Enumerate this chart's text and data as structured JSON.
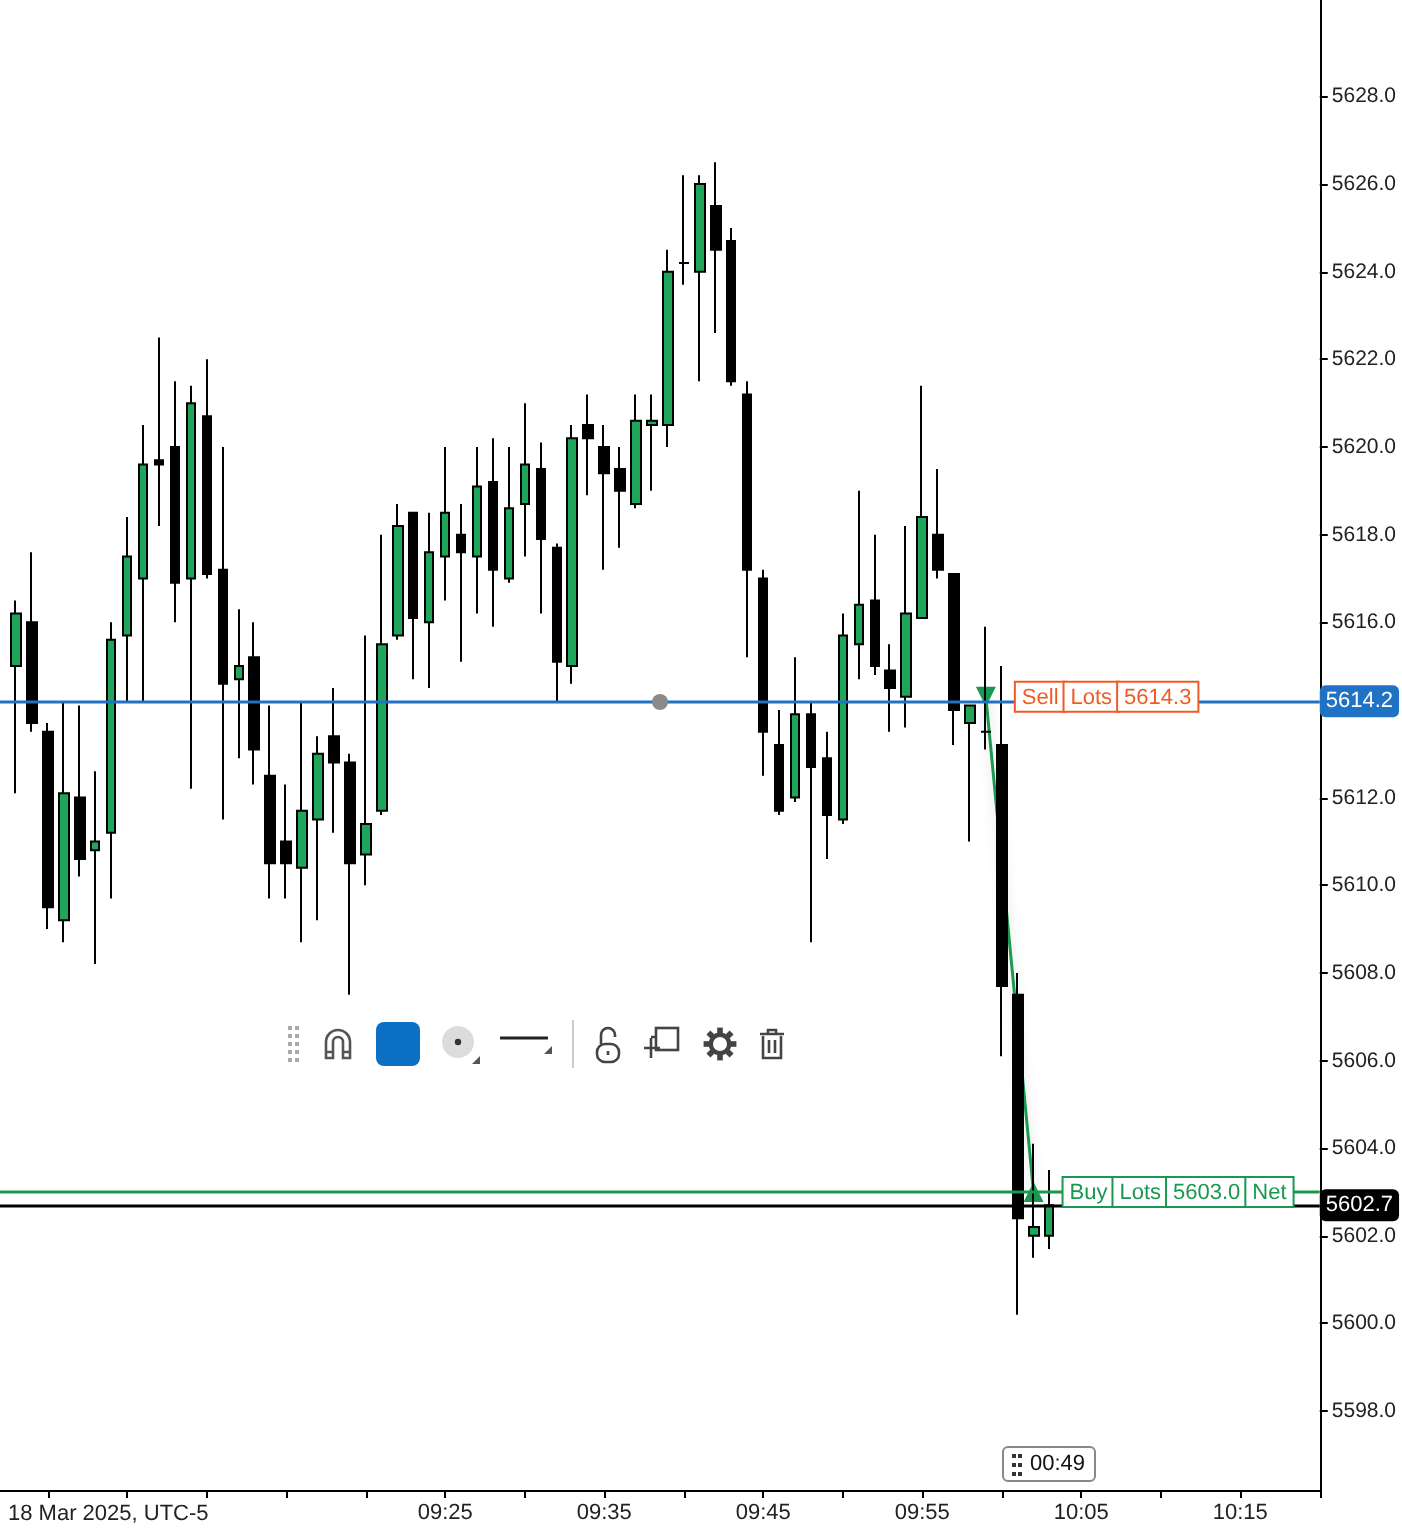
{
  "chart_data": {
    "type": "candlestick",
    "xlabel": "18 Mar 2025, UTC-5",
    "x": [
      "2025-03-18T08:58",
      "2025-03-18T08:59",
      "2025-03-18T09:00",
      "2025-03-18T09:01",
      "2025-03-18T09:02",
      "2025-03-18T09:03",
      "2025-03-18T09:04",
      "2025-03-18T09:05",
      "2025-03-18T09:06",
      "2025-03-18T09:07",
      "2025-03-18T09:08",
      "2025-03-18T09:09",
      "2025-03-18T09:10",
      "2025-03-18T09:11",
      "2025-03-18T09:12",
      "2025-03-18T09:13",
      "2025-03-18T09:14",
      "2025-03-18T09:15",
      "2025-03-18T09:16",
      "2025-03-18T09:17",
      "2025-03-18T09:18",
      "2025-03-18T09:19",
      "2025-03-18T09:20",
      "2025-03-18T09:21",
      "2025-03-18T09:22",
      "2025-03-18T09:23",
      "2025-03-18T09:24",
      "2025-03-18T09:25",
      "2025-03-18T09:26",
      "2025-03-18T09:27",
      "2025-03-18T09:28",
      "2025-03-18T09:29",
      "2025-03-18T09:30",
      "2025-03-18T09:31",
      "2025-03-18T09:32",
      "2025-03-18T09:33",
      "2025-03-18T09:34",
      "2025-03-18T09:35",
      "2025-03-18T09:36",
      "2025-03-18T09:37",
      "2025-03-18T09:38",
      "2025-03-18T09:39",
      "2025-03-18T09:40",
      "2025-03-18T09:41",
      "2025-03-18T09:42",
      "2025-03-18T09:43",
      "2025-03-18T09:44",
      "2025-03-18T09:45",
      "2025-03-18T09:46",
      "2025-03-18T09:47",
      "2025-03-18T09:48",
      "2025-03-18T09:49",
      "2025-03-18T09:50",
      "2025-03-18T09:51",
      "2025-03-18T09:52",
      "2025-03-18T09:53",
      "2025-03-18T09:54",
      "2025-03-18T09:55",
      "2025-03-18T09:56",
      "2025-03-18T09:57",
      "2025-03-18T09:58",
      "2025-03-18T09:59",
      "2025-03-18T10:00",
      "2025-03-18T10:01",
      "2025-03-18T10:02",
      "2025-03-18T10:03"
    ],
    "ohlc": [
      [
        5615.0,
        5616.5,
        5612.1,
        5616.2
      ],
      [
        5616.0,
        5617.6,
        5613.5,
        5613.7
      ],
      [
        5613.5,
        5613.7,
        5609.0,
        5609.5
      ],
      [
        5609.2,
        5614.2,
        5608.7,
        5612.1
      ],
      [
        5612.0,
        5614.1,
        5610.2,
        5610.6
      ],
      [
        5610.8,
        5612.6,
        5608.2,
        5611.0
      ],
      [
        5611.2,
        5616.0,
        5609.7,
        5615.6
      ],
      [
        5615.7,
        5618.4,
        5614.2,
        5617.5
      ],
      [
        5617.0,
        5620.5,
        5614.2,
        5619.6
      ],
      [
        5619.7,
        5622.5,
        5618.2,
        5619.6
      ],
      [
        5620.0,
        5621.5,
        5616.0,
        5616.9
      ],
      [
        5617.0,
        5621.4,
        5612.2,
        5621.0
      ],
      [
        5620.7,
        5622.0,
        5617.0,
        5617.1
      ],
      [
        5617.2,
        5620.0,
        5611.5,
        5614.6
      ],
      [
        5614.7,
        5616.3,
        5612.9,
        5615.0
      ],
      [
        5615.2,
        5616.0,
        5612.3,
        5613.1
      ],
      [
        5612.5,
        5614.1,
        5609.7,
        5610.5
      ],
      [
        5611.0,
        5612.3,
        5609.7,
        5610.5
      ],
      [
        5610.4,
        5614.2,
        5608.7,
        5611.7
      ],
      [
        5611.5,
        5613.4,
        5609.2,
        5613.0
      ],
      [
        5613.4,
        5614.5,
        5611.2,
        5612.8
      ],
      [
        5612.8,
        5613.0,
        5607.5,
        5610.5
      ],
      [
        5610.7,
        5615.7,
        5610.0,
        5611.4
      ],
      [
        5611.7,
        5618.0,
        5611.6,
        5615.5
      ],
      [
        5615.7,
        5618.7,
        5615.6,
        5618.2
      ],
      [
        5618.5,
        5618.5,
        5614.7,
        5616.1
      ],
      [
        5616.0,
        5618.5,
        5614.5,
        5617.6
      ],
      [
        5617.5,
        5620.0,
        5616.5,
        5618.5
      ],
      [
        5618.0,
        5618.7,
        5615.1,
        5617.6
      ],
      [
        5617.5,
        5620.0,
        5616.2,
        5619.1
      ],
      [
        5619.2,
        5620.2,
        5615.9,
        5617.2
      ],
      [
        5617.0,
        5620.0,
        5616.9,
        5618.6
      ],
      [
        5618.7,
        5621.0,
        5617.5,
        5619.6
      ],
      [
        5619.5,
        5620.1,
        5616.2,
        5617.9
      ],
      [
        5617.7,
        5617.8,
        5614.2,
        5615.1
      ],
      [
        5615.0,
        5620.5,
        5614.6,
        5620.2
      ],
      [
        5620.5,
        5621.2,
        5618.9,
        5620.2
      ],
      [
        5620.0,
        5620.5,
        5617.2,
        5619.4
      ],
      [
        5619.5,
        5620.0,
        5617.7,
        5619.0
      ],
      [
        5618.7,
        5621.2,
        5618.6,
        5620.6
      ],
      [
        5620.5,
        5621.2,
        5619.0,
        5620.6
      ],
      [
        5620.5,
        5624.5,
        5620.0,
        5624.0
      ],
      [
        5624.2,
        5626.2,
        5623.7,
        5624.2
      ],
      [
        5624.0,
        5626.2,
        5621.5,
        5626.0
      ],
      [
        5625.5,
        5626.5,
        5622.6,
        5624.5
      ],
      [
        5624.7,
        5625.0,
        5621.4,
        5621.5
      ],
      [
        5621.2,
        5621.5,
        5615.2,
        5617.2
      ],
      [
        5617.0,
        5617.2,
        5612.5,
        5613.5
      ],
      [
        5613.2,
        5614.0,
        5611.6,
        5611.7
      ],
      [
        5612.0,
        5615.2,
        5611.9,
        5613.9
      ],
      [
        5613.9,
        5614.2,
        5608.7,
        5612.7
      ],
      [
        5612.9,
        5613.5,
        5610.6,
        5611.6
      ],
      [
        5611.5,
        5616.2,
        5611.4,
        5615.7
      ],
      [
        5615.5,
        5619.0,
        5614.7,
        5616.4
      ],
      [
        5616.5,
        5618.0,
        5614.8,
        5615.0
      ],
      [
        5614.9,
        5615.5,
        5613.5,
        5614.5
      ],
      [
        5614.3,
        5618.2,
        5613.6,
        5616.2
      ],
      [
        5616.1,
        5621.4,
        5616.1,
        5618.4
      ],
      [
        5618.0,
        5619.5,
        5617.0,
        5617.2
      ],
      [
        5617.1,
        5617.1,
        5613.2,
        5614.0
      ],
      [
        5613.7,
        5614.1,
        5611.0,
        5614.1
      ],
      [
        5613.5,
        5615.9,
        5613.1,
        5613.5
      ],
      [
        5613.2,
        5615.0,
        5606.1,
        5607.7
      ],
      [
        5607.5,
        5608.0,
        5600.2,
        5602.4
      ],
      [
        5602.0,
        5604.1,
        5601.5,
        5602.2
      ],
      [
        5602.0,
        5603.5,
        5601.7,
        5602.7
      ]
    ],
    "series": [
      {
        "type": "line",
        "x": [
          "2025-03-18T09:59",
          "2025-03-18T10:02"
        ],
        "values": [
          5614.3,
          5603.0
        ],
        "color": "#1a9850",
        "marker": "triangle"
      }
    ],
    "xlim": [
      "2025-03-18T08:57",
      "2025-03-18T10:20"
    ],
    "xticks": [
      {
        "value": "2025-03-18T09:00",
        "label": null
      },
      {
        "value": "2025-03-18T09:05",
        "label": null
      },
      {
        "value": "2025-03-18T09:10",
        "label": null
      },
      {
        "value": "2025-03-18T09:15",
        "label": null
      },
      {
        "value": "2025-03-18T09:20",
        "label": null
      },
      {
        "value": "2025-03-18T09:25",
        "label": "09:25"
      },
      {
        "value": "2025-03-18T09:30",
        "label": null
      },
      {
        "value": "2025-03-18T09:35",
        "label": "09:35"
      },
      {
        "value": "2025-03-18T09:40",
        "label": null
      },
      {
        "value": "2025-03-18T09:45",
        "label": "09:45"
      },
      {
        "value": "2025-03-18T09:50",
        "label": null
      },
      {
        "value": "2025-03-18T09:55",
        "label": "09:55"
      },
      {
        "value": "2025-03-18T10:00",
        "label": null
      },
      {
        "value": "2025-03-18T10:05",
        "label": "10:05"
      },
      {
        "value": "2025-03-18T10:10",
        "label": null
      },
      {
        "value": "2025-03-18T10:15",
        "label": "10:15"
      },
      {
        "value": "2025-03-18T10:20",
        "label": null
      }
    ],
    "ylim": [
      5596.2,
      5630.2
    ],
    "yticks": [
      {
        "value": 5598,
        "label": "5598.0"
      },
      {
        "value": 5600,
        "label": "5600.0"
      },
      {
        "value": 5602,
        "label": "5602.0"
      },
      {
        "value": 5604,
        "label": "5604.0"
      },
      {
        "value": 5606,
        "label": "5606.0"
      },
      {
        "value": 5608,
        "label": "5608.0"
      },
      {
        "value": 5610,
        "label": "5610.0"
      },
      {
        "value": 5612,
        "label": "5612.0"
      },
      {
        "value": 5616,
        "label": "5616.0"
      },
      {
        "value": 5618,
        "label": "5618.0"
      },
      {
        "value": 5620,
        "label": "5620.0"
      },
      {
        "value": 5622,
        "label": "5622.0"
      },
      {
        "value": 5624,
        "label": "5624.0"
      },
      {
        "value": 5626,
        "label": "5626.0"
      },
      {
        "value": 5628,
        "label": "5628.0"
      }
    ],
    "ref_lines": [
      {
        "axis": "y",
        "value": 5614.2,
        "label": "5614.2",
        "color": "#1f72c4"
      },
      {
        "axis": "y",
        "value": 5603.0,
        "color": "#1a9850"
      },
      {
        "axis": "y",
        "value": 5602.7,
        "label": "5602.7",
        "color": "#000000"
      }
    ],
    "annotations": [
      {
        "text": "Sell Lots 5614.3",
        "x": "2025-03-18T09:59",
        "y": 5614.3
      },
      {
        "text": "Buy Lots 5603.0 Net",
        "x": "2025-03-18T10:02",
        "y": 5603.0
      },
      "00:49"
    ]
  }
}
